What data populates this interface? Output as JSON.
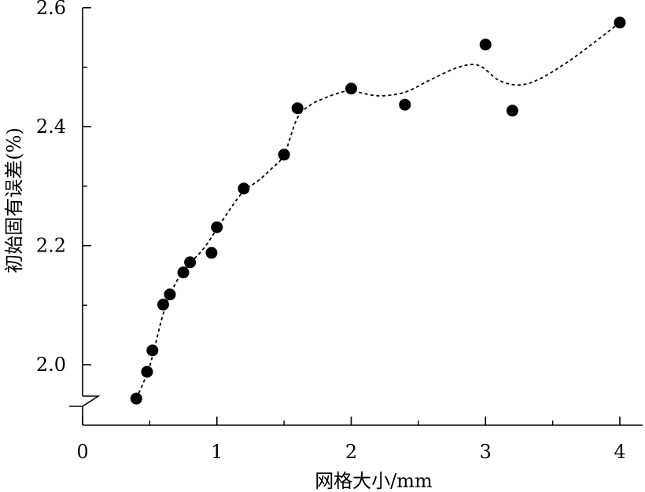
{
  "chart_data": {
    "type": "scatter",
    "xlabel": "网格大小/mm",
    "ylabel": "初始固有误差(%)",
    "xlim": [
      0,
      4.2
    ],
    "ylim": [
      1.9,
      2.6
    ],
    "x_ticks": [
      0,
      1,
      2,
      3,
      4
    ],
    "x_tick_labels": [
      "0",
      "1",
      "2",
      "3",
      "4"
    ],
    "y_ticks": [
      2.0,
      2.2,
      2.4,
      2.6
    ],
    "y_tick_labels": [
      "2.0",
      "2.2",
      "2.4",
      "2.6"
    ],
    "y_axis_break": true,
    "grid": false,
    "legend": "none",
    "trend_line": "dashed smooth curve",
    "series": [
      {
        "marker": "filled-circle",
        "color": "#000000",
        "x": [
          0.4,
          0.48,
          0.52,
          0.6,
          0.65,
          0.75,
          0.8,
          0.96,
          1.0,
          1.2,
          1.5,
          1.6,
          2.0,
          2.4,
          3.0,
          3.2,
          4.0
        ],
        "y": [
          1.943,
          1.988,
          2.024,
          2.101,
          2.118,
          2.155,
          2.172,
          2.188,
          2.231,
          2.296,
          2.353,
          2.431,
          2.464,
          2.437,
          2.538,
          2.427,
          2.575
        ]
      }
    ],
    "curve": {
      "x": [
        0.4,
        0.5,
        0.6,
        0.7,
        0.8,
        0.9,
        1.0,
        1.1,
        1.2,
        1.3,
        1.4,
        1.5,
        1.6,
        1.7,
        1.8,
        1.9,
        2.0,
        2.2,
        2.4,
        2.6,
        2.8,
        2.95,
        3.1,
        3.25,
        3.4,
        3.6,
        3.8,
        4.0
      ],
      "y": [
        1.943,
        1.998,
        2.085,
        2.14,
        2.17,
        2.195,
        2.228,
        2.262,
        2.292,
        2.308,
        2.328,
        2.353,
        2.415,
        2.437,
        2.448,
        2.456,
        2.46,
        2.452,
        2.458,
        2.48,
        2.5,
        2.503,
        2.478,
        2.47,
        2.48,
        2.507,
        2.54,
        2.575
      ]
    }
  }
}
